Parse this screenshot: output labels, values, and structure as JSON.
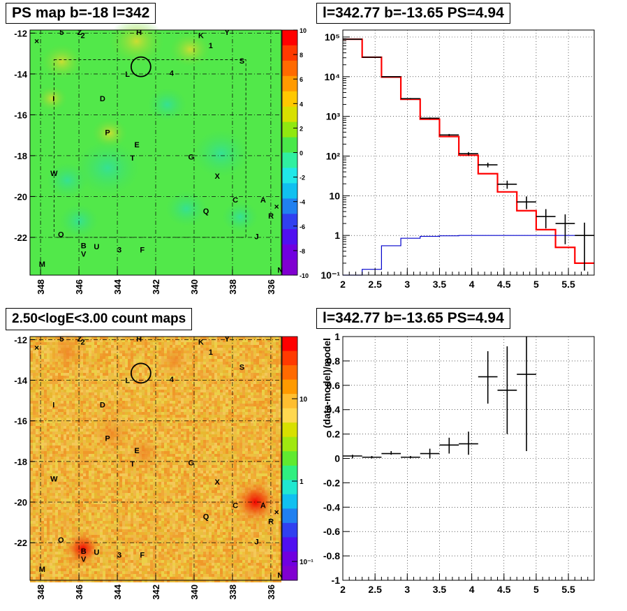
{
  "panels": {
    "tl_title": "PS map b=-18 l=342",
    "tr_title": "l=342.77 b=-13.65 PS=4.94",
    "bl_title": "2.50<logE<3.00 count maps",
    "br_title": "l=342.77 b=-13.65 PS=4.94"
  },
  "map_axes": {
    "lon_ticks": [
      "348",
      "346",
      "344",
      "342",
      "340",
      "338",
      "336"
    ],
    "lat_ticks": [
      "-12",
      "-14",
      "-16",
      "-18",
      "-20",
      "-22"
    ]
  },
  "source_labels": {
    "top_map": [
      {
        "t": "5",
        "l": 346.9,
        "b": -11.95
      },
      {
        "t": "Z",
        "l": 345.97,
        "b": -11.95
      },
      {
        "t": "2",
        "l": 345.8,
        "b": -12.1
      },
      {
        "t": "H",
        "l": 342.87,
        "b": -11.95
      },
      {
        "t": "K",
        "l": 339.64,
        "b": -12.1
      },
      {
        "t": "1",
        "l": 339.13,
        "b": -12.6
      },
      {
        "t": "Y",
        "l": 338.28,
        "b": -11.95
      },
      {
        "t": "S",
        "l": 337.51,
        "b": -13.35
      },
      {
        "t": "L",
        "l": 343.47,
        "b": -14.0
      },
      {
        "t": "4",
        "l": 341.17,
        "b": -13.95
      },
      {
        "t": "I",
        "l": 347.32,
        "b": -15.2
      },
      {
        "t": "D",
        "l": 344.77,
        "b": -15.2
      },
      {
        "t": "P",
        "l": 344.51,
        "b": -16.85
      },
      {
        "t": "E",
        "l": 342.98,
        "b": -17.45
      },
      {
        "t": "T",
        "l": 343.21,
        "b": -18.1
      },
      {
        "t": "G",
        "l": 340.15,
        "b": -18.05
      },
      {
        "t": "W",
        "l": 347.3,
        "b": -18.85
      },
      {
        "t": "X",
        "l": 338.79,
        "b": -19.0
      },
      {
        "t": "C",
        "l": 337.85,
        "b": -20.15
      },
      {
        "t": "A",
        "l": 336.4,
        "b": -20.15
      },
      {
        "t": "Q",
        "l": 339.38,
        "b": -20.7
      },
      {
        "t": "R",
        "l": 335.99,
        "b": -20.95
      },
      {
        "t": "O",
        "l": 346.94,
        "b": -21.85
      },
      {
        "t": "J",
        "l": 336.74,
        "b": -21.95
      },
      {
        "t": "B",
        "l": 345.76,
        "b": -22.4
      },
      {
        "t": "U",
        "l": 345.08,
        "b": -22.45
      },
      {
        "t": "V",
        "l": 345.76,
        "b": -22.8
      },
      {
        "t": "3",
        "l": 343.89,
        "b": -22.6
      },
      {
        "t": "F",
        "l": 342.7,
        "b": -22.6
      },
      {
        "t": "M",
        "l": 347.92,
        "b": -23.3
      },
      {
        "t": "N",
        "l": 335.51,
        "b": -23.6
      }
    ]
  },
  "circle_marker": {
    "l": 342.77,
    "b": -13.65
  },
  "top_map_colorbar": {
    "ticks": [
      "10",
      "8",
      "6",
      "4",
      "2",
      "0",
      "-2",
      "-4",
      "-6",
      "-8",
      "-10"
    ]
  },
  "bottom_map_colorbar": {
    "ticks": [
      "10",
      "1",
      "10⁻¹"
    ]
  },
  "chart_data": [
    {
      "type": "line",
      "title": "l=342.77 b=-13.65 PS=4.94",
      "xlabel": "",
      "ylabel": "",
      "xlim": [
        2.0,
        5.9
      ],
      "ylim": [
        0.1,
        150000
      ],
      "y_scale": "log",
      "grid": true,
      "x_ticks": [
        "2",
        "2.5",
        "3",
        "3.5",
        "4",
        "4.5",
        "5",
        "5.5"
      ],
      "y_ticks": [
        "10⁻¹",
        "1",
        "10",
        "10²",
        "10³",
        "10⁴",
        "10⁵"
      ],
      "series": [
        {
          "color": "#ff0000",
          "style": "step",
          "edges": [
            2.0,
            2.3,
            2.6,
            2.9,
            3.2,
            3.5,
            3.8,
            4.1,
            4.4,
            4.7,
            5.0,
            5.3,
            5.6,
            5.9
          ],
          "values": [
            88000,
            31000,
            9800,
            2700,
            850,
            310,
            105,
            36,
            12.5,
            4.2,
            1.4,
            0.5,
            0.2
          ]
        },
        {
          "color": "#0000cc",
          "style": "step",
          "edges": [
            2.0,
            2.3,
            2.6,
            2.9,
            3.2,
            3.5,
            3.8,
            4.1,
            4.4,
            4.7,
            5.0,
            5.3,
            5.6,
            5.9
          ],
          "values": [
            0.1,
            0.14,
            0.55,
            0.85,
            0.95,
            0.98,
            1.0,
            1.0,
            1.0,
            1.0,
            1.0,
            1.0,
            1.0
          ]
        },
        {
          "color": "#000000",
          "style": "errorbars",
          "points": [
            {
              "x": 2.15,
              "y": 88000,
              "ylo": 87000,
              "yhi": 89000,
              "xerr": 0.15
            },
            {
              "x": 2.45,
              "y": 31000,
              "ylo": 30600,
              "yhi": 31400,
              "xerr": 0.15
            },
            {
              "x": 2.75,
              "y": 10000,
              "ylo": 9800,
              "yhi": 10200,
              "xerr": 0.15
            },
            {
              "x": 3.05,
              "y": 2800,
              "ylo": 2700,
              "yhi": 2900,
              "xerr": 0.15
            },
            {
              "x": 3.35,
              "y": 900,
              "ylo": 860,
              "yhi": 940,
              "xerr": 0.15
            },
            {
              "x": 3.65,
              "y": 340,
              "ylo": 320,
              "yhi": 360,
              "xerr": 0.15
            },
            {
              "x": 3.95,
              "y": 115,
              "ylo": 104,
              "yhi": 126,
              "xerr": 0.15
            },
            {
              "x": 4.25,
              "y": 60,
              "ylo": 52,
              "yhi": 68,
              "xerr": 0.15
            },
            {
              "x": 4.55,
              "y": 19.5,
              "ylo": 15,
              "yhi": 24,
              "xerr": 0.15
            },
            {
              "x": 4.85,
              "y": 7,
              "ylo": 4.6,
              "yhi": 9.6,
              "xerr": 0.15
            },
            {
              "x": 5.15,
              "y": 3,
              "ylo": 1.5,
              "yhi": 4.6,
              "xerr": 0.15
            },
            {
              "x": 5.45,
              "y": 2,
              "ylo": 0.6,
              "yhi": 3.4,
              "xerr": 0.15
            },
            {
              "x": 5.75,
              "y": 1,
              "ylo": 0.13,
              "yhi": 2.1,
              "xerr": 0.15
            }
          ]
        }
      ]
    },
    {
      "type": "scatter",
      "title": "l=342.77 b=-13.65 PS=4.94",
      "xlabel": "",
      "ylabel": "(data-model)/model",
      "xlim": [
        2.0,
        5.9
      ],
      "ylim": [
        -1.0,
        1.0
      ],
      "grid": true,
      "x_ticks": [
        "2",
        "2.5",
        "3",
        "3.5",
        "4",
        "4.5",
        "5",
        "5.5"
      ],
      "y_ticks": [
        "-1",
        "-0.8",
        "-0.6",
        "-0.4",
        "-0.2",
        "0",
        "0.2",
        "0.4",
        "0.6",
        "0.8",
        "1"
      ],
      "series": [
        {
          "color": "#000000",
          "style": "errorbars",
          "points": [
            {
              "x": 2.15,
              "y": 0.02,
              "ylo": 0.0,
              "yhi": 0.03,
              "xerr": 0.15
            },
            {
              "x": 2.45,
              "y": 0.01,
              "ylo": 0.0,
              "yhi": 0.02,
              "xerr": 0.15
            },
            {
              "x": 2.75,
              "y": 0.04,
              "ylo": 0.03,
              "yhi": 0.06,
              "xerr": 0.15
            },
            {
              "x": 3.05,
              "y": 0.01,
              "ylo": 0.0,
              "yhi": 0.02,
              "xerr": 0.15
            },
            {
              "x": 3.35,
              "y": 0.04,
              "ylo": 0.0,
              "yhi": 0.08,
              "xerr": 0.15
            },
            {
              "x": 3.65,
              "y": 0.11,
              "ylo": 0.04,
              "yhi": 0.17,
              "xerr": 0.15
            },
            {
              "x": 3.95,
              "y": 0.12,
              "ylo": 0.03,
              "yhi": 0.22,
              "xerr": 0.15
            },
            {
              "x": 4.25,
              "y": 0.67,
              "ylo": 0.45,
              "yhi": 0.88,
              "xerr": 0.15
            },
            {
              "x": 4.55,
              "y": 0.56,
              "ylo": 0.2,
              "yhi": 0.92,
              "xerr": 0.15
            },
            {
              "x": 4.85,
              "y": 0.69,
              "ylo": 0.06,
              "yhi": 1.0,
              "xerr": 0.15
            }
          ]
        }
      ]
    }
  ]
}
